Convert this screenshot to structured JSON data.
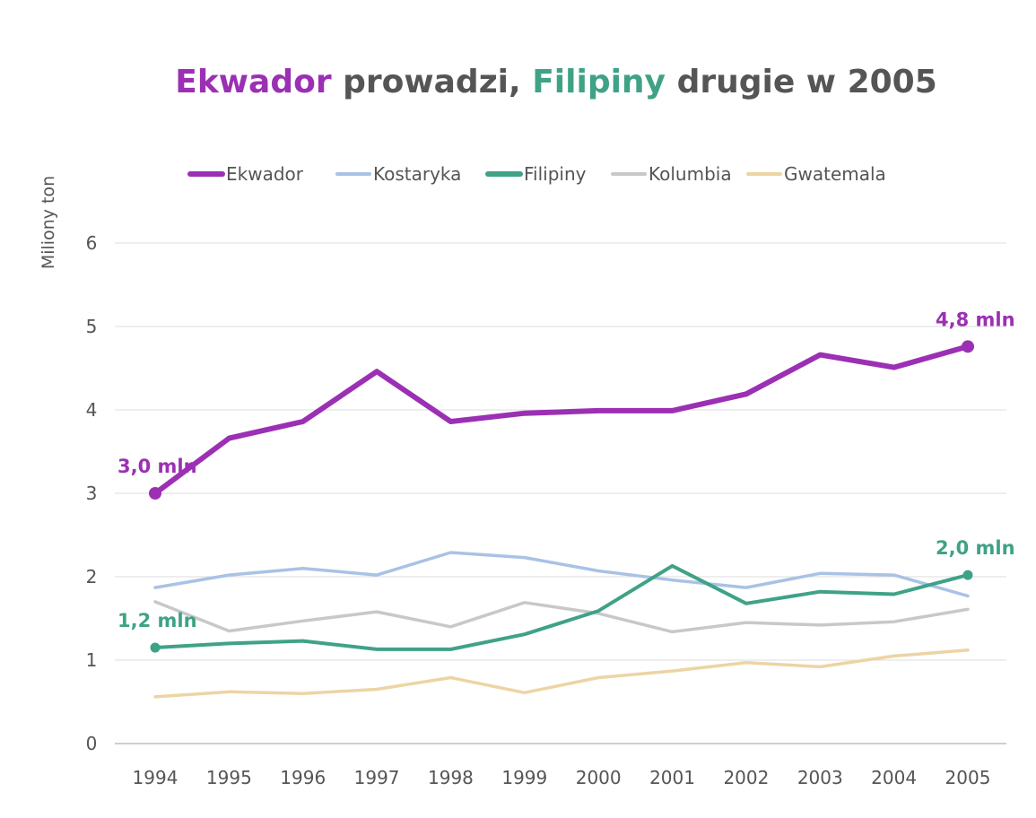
{
  "chart_data": {
    "type": "line",
    "title_parts": [
      {
        "text": "Ekwador",
        "color": "#9B30B4"
      },
      {
        "text": " prowadzi, ",
        "color": "#555555"
      },
      {
        "text": "Filipiny",
        "color": "#3FA287"
      },
      {
        "text": " drugie w 2005",
        "color": "#555555"
      }
    ],
    "ylabel": "Miliony ton",
    "xlabel": "",
    "ylim": [
      0,
      6
    ],
    "yticks": [
      0,
      1,
      2,
      3,
      4,
      5,
      6
    ],
    "grid": true,
    "legend_position": "top",
    "x": [
      "1994",
      "1995",
      "1996",
      "1997",
      "1998",
      "1999",
      "2000",
      "2001",
      "2002",
      "2003",
      "2004",
      "2005"
    ],
    "series": [
      {
        "name": "Gwatemala",
        "color": "#EDD4A4",
        "highlight": false,
        "values": [
          0.56,
          0.62,
          0.6,
          0.65,
          0.79,
          0.61,
          0.79,
          0.87,
          0.97,
          0.92,
          1.05,
          1.12
        ]
      },
      {
        "name": "Kolumbia",
        "color": "#C8C8C8",
        "highlight": false,
        "values": [
          1.7,
          1.35,
          1.47,
          1.58,
          1.4,
          1.69,
          1.56,
          1.34,
          1.45,
          1.42,
          1.46,
          1.61
        ]
      },
      {
        "name": "Kostaryka",
        "color": "#A9C2E5",
        "highlight": false,
        "values": [
          1.87,
          2.02,
          2.1,
          2.02,
          2.29,
          2.23,
          2.07,
          1.96,
          1.87,
          2.04,
          2.02,
          1.77
        ]
      },
      {
        "name": "Filipiny",
        "color": "#3FA287",
        "highlight": true,
        "values": [
          1.15,
          1.2,
          1.23,
          1.13,
          1.13,
          1.31,
          1.59,
          2.13,
          1.68,
          1.82,
          1.79,
          2.02
        ]
      },
      {
        "name": "Ekwador",
        "color": "#9B30B4",
        "highlight": true,
        "values": [
          3.0,
          3.66,
          3.86,
          4.46,
          3.86,
          3.96,
          3.99,
          3.99,
          4.19,
          4.66,
          4.51,
          4.76
        ]
      }
    ],
    "legend_order": [
      "Ekwador",
      "Kostaryka",
      "Filipiny",
      "Kolumbia",
      "Gwatemala"
    ],
    "annotations": [
      {
        "series": "Ekwador",
        "index": 0,
        "text": "3,0 mln",
        "color": "#9B30B4"
      },
      {
        "series": "Ekwador",
        "index": 11,
        "text": "4,8 mln",
        "color": "#9B30B4"
      },
      {
        "series": "Filipiny",
        "index": 0,
        "text": "1,2 mln",
        "color": "#3FA287"
      },
      {
        "series": "Filipiny",
        "index": 11,
        "text": "2,0 mln",
        "color": "#3FA287"
      }
    ]
  }
}
